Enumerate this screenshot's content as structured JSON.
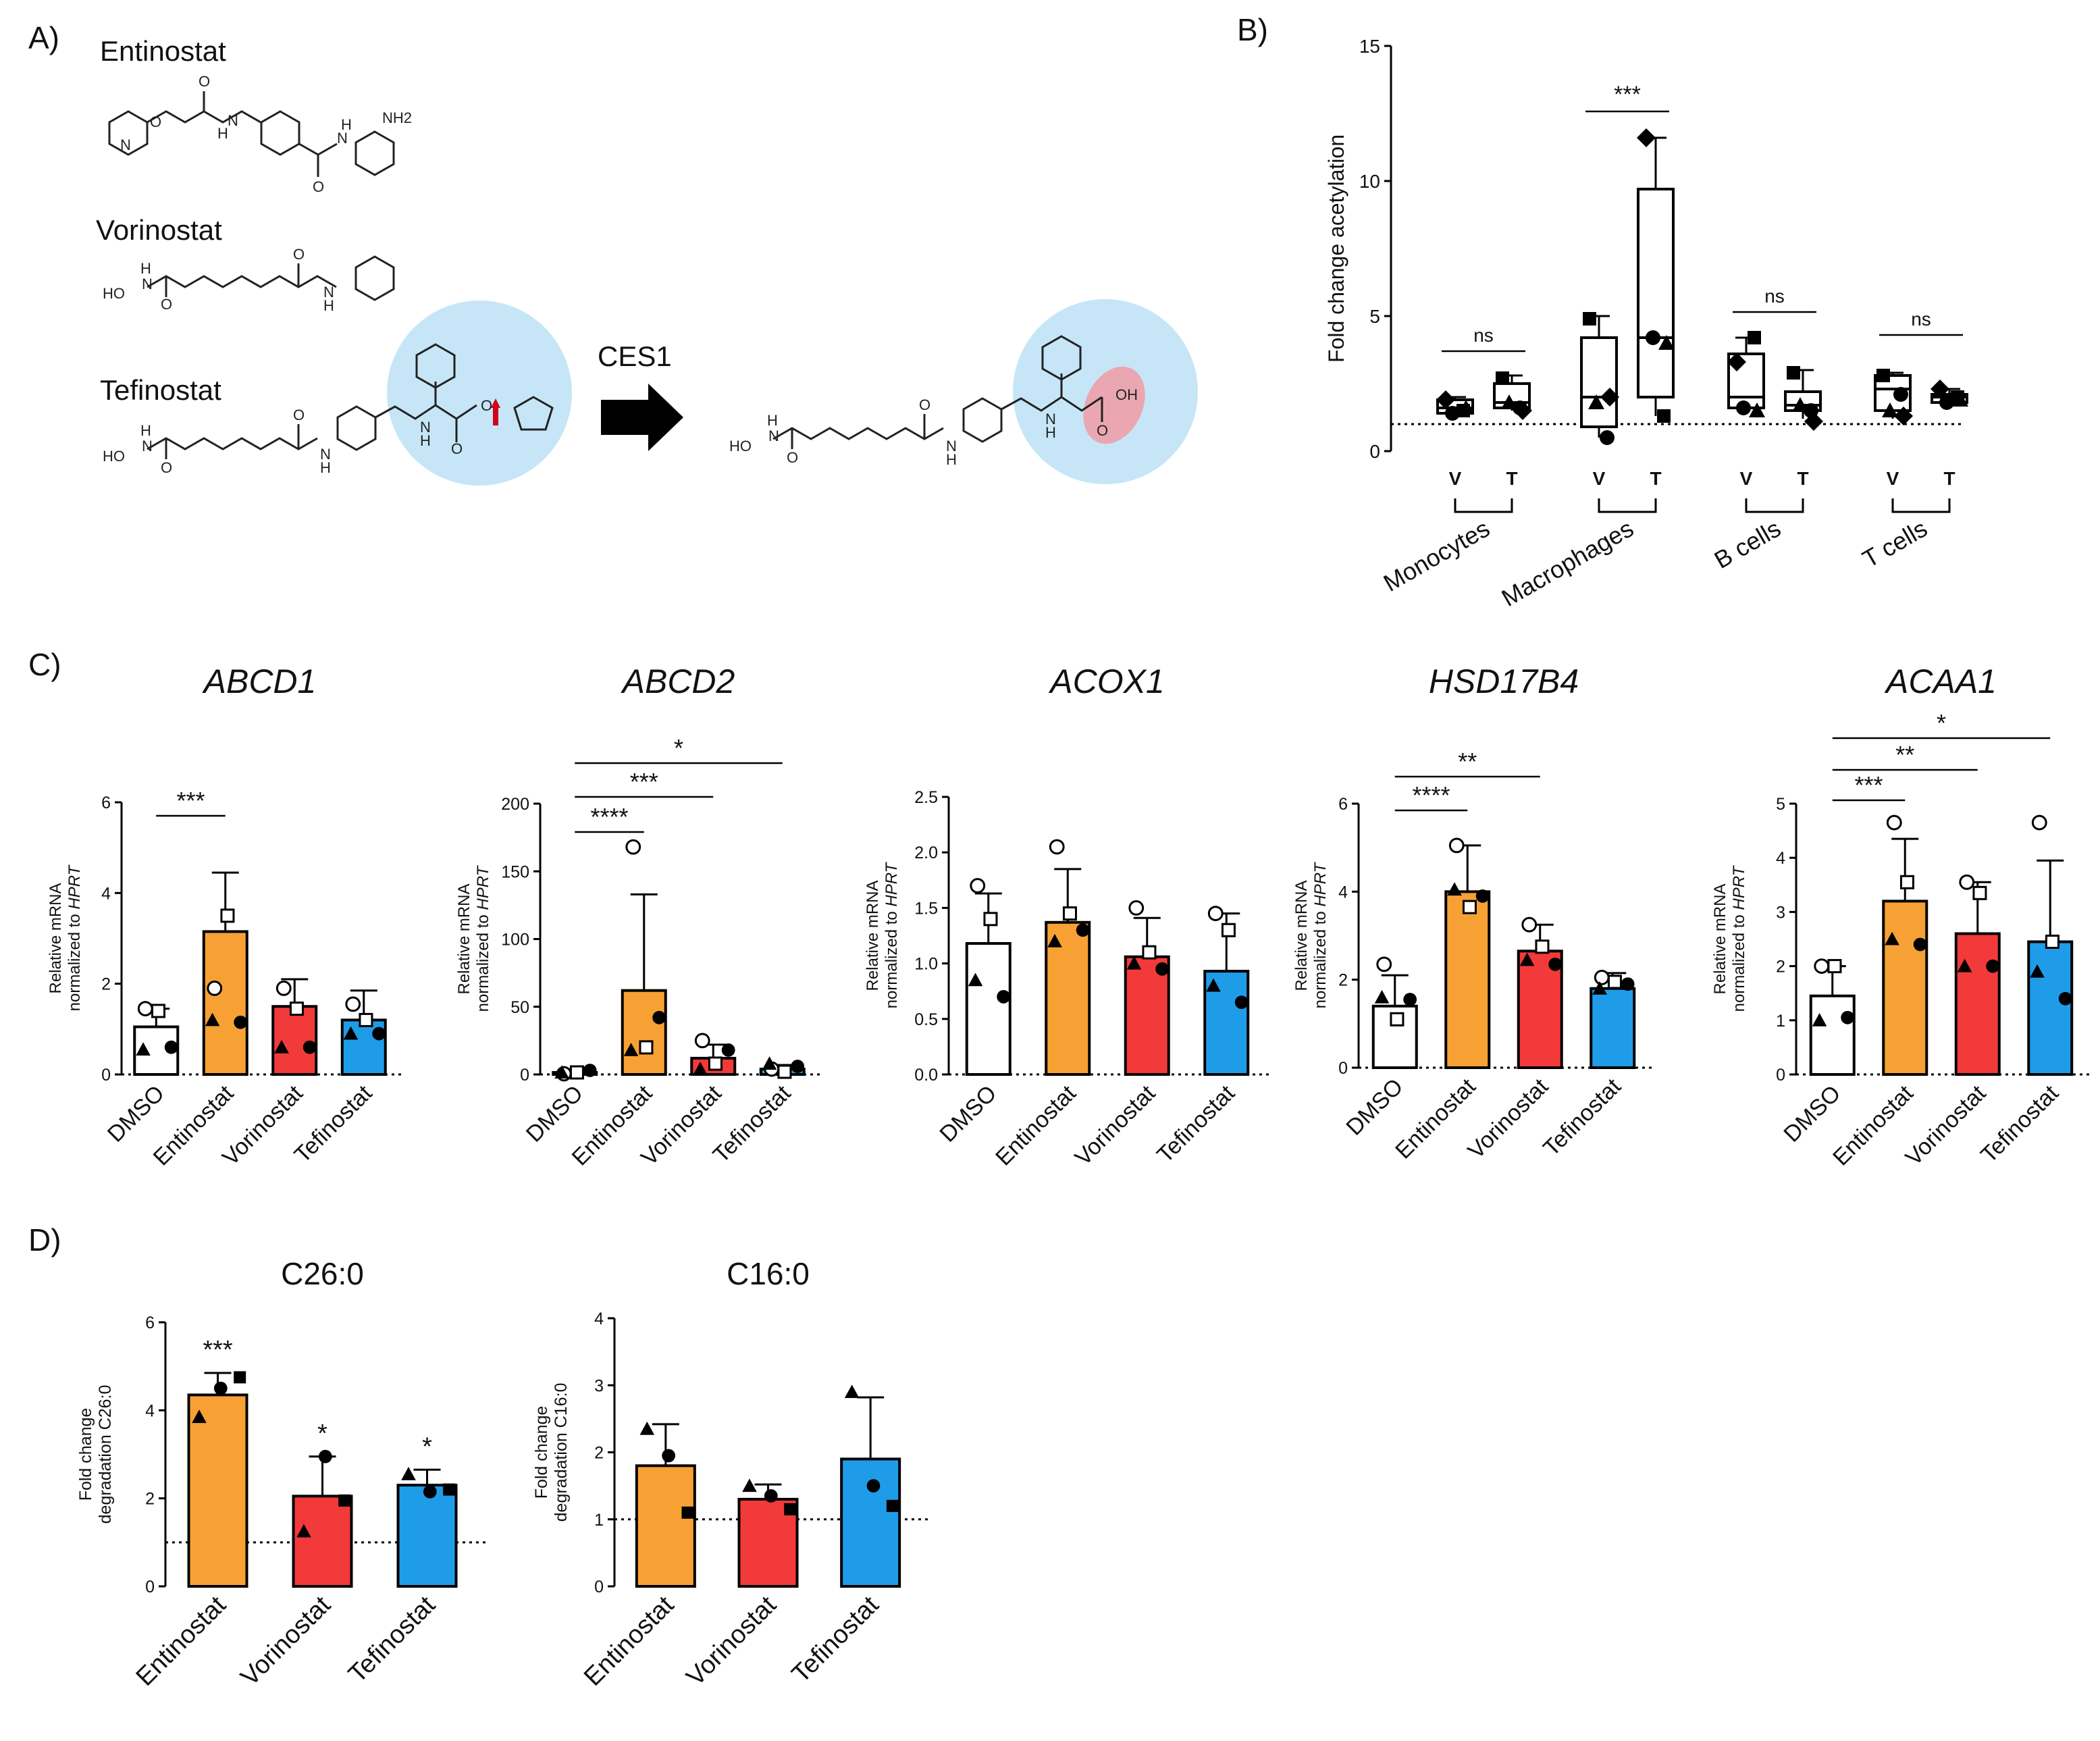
{
  "panels": {
    "A": {
      "label": "A)",
      "drugs": [
        "Entinostat",
        "Vorinostat",
        "Tefinostat"
      ],
      "enzyme": "CES1",
      "atoms": {
        "ent": [
          "O",
          "O",
          "H",
          "N",
          "N",
          "N",
          "H",
          "NH2",
          "O"
        ],
        "vor": [
          "HO",
          "H",
          "N",
          "O",
          "O",
          "N",
          "H"
        ],
        "tef": [
          "HO",
          "H",
          "N",
          "O",
          "O",
          "N",
          "H",
          "N",
          "H",
          "O",
          "O"
        ],
        "prod": [
          "HO",
          "H",
          "N",
          "O",
          "O",
          "N",
          "H",
          "N",
          "H",
          "OH",
          "O"
        ]
      }
    },
    "B": {
      "label": "B)"
    },
    "C": {
      "label": "C)"
    },
    "D": {
      "label": "D)"
    }
  },
  "chart_data": [
    {
      "id": "B",
      "type": "box",
      "ylabel": "Fold change acetylation",
      "ylim": [
        0,
        15
      ],
      "yticks": [
        0,
        5,
        10,
        15
      ],
      "reference_line": 1,
      "groups": [
        "Monocytes",
        "Macrophages",
        "B cells",
        "T cells"
      ],
      "conditions": [
        "V",
        "T"
      ],
      "boxes": [
        {
          "group": "Monocytes",
          "cond": "V",
          "min": 1.3,
          "q1": 1.4,
          "median": 1.6,
          "q3": 1.9,
          "max": 2.0,
          "points": [
            1.9,
            1.5,
            1.4,
            1.6
          ]
        },
        {
          "group": "Monocytes",
          "cond": "T",
          "min": 1.5,
          "q1": 1.6,
          "median": 1.8,
          "q3": 2.5,
          "max": 2.8,
          "points": [
            2.7,
            1.6,
            1.8,
            1.5
          ]
        },
        {
          "group": "Macrophages",
          "cond": "V",
          "min": 0.5,
          "q1": 0.9,
          "median": 2.0,
          "q3": 4.2,
          "max": 5.0,
          "points": [
            4.9,
            0.5,
            1.8,
            2.0
          ]
        },
        {
          "group": "Macrophages",
          "cond": "T",
          "min": 1.3,
          "q1": 2.0,
          "median": 4.2,
          "q3": 9.7,
          "max": 11.6,
          "points": [
            11.6,
            1.3,
            4.2,
            4.0
          ]
        },
        {
          "group": "B cells",
          "cond": "V",
          "min": 1.5,
          "q1": 1.6,
          "median": 2.0,
          "q3": 3.6,
          "max": 4.2,
          "points": [
            3.3,
            4.2,
            1.6,
            1.5
          ]
        },
        {
          "group": "B cells",
          "cond": "T",
          "min": 1.2,
          "q1": 1.5,
          "median": 1.7,
          "q3": 2.2,
          "max": 3.0,
          "points": [
            2.9,
            1.5,
            1.7,
            1.1
          ]
        },
        {
          "group": "T cells",
          "cond": "V",
          "min": 1.2,
          "q1": 1.5,
          "median": 2.3,
          "q3": 2.8,
          "max": 2.9,
          "points": [
            2.8,
            2.1,
            1.5,
            1.3
          ]
        },
        {
          "group": "T cells",
          "cond": "T",
          "min": 1.7,
          "q1": 1.8,
          "median": 2.0,
          "q3": 2.1,
          "max": 2.3,
          "points": [
            2.3,
            2.0,
            1.8,
            1.9
          ]
        }
      ],
      "significance": [
        {
          "group": "Monocytes",
          "label": "ns"
        },
        {
          "group": "Macrophages",
          "label": "***"
        },
        {
          "group": "B cells",
          "label": "ns"
        },
        {
          "group": "T cells",
          "label": "ns"
        }
      ]
    },
    {
      "id": "C1",
      "type": "bar",
      "title": "ABCD1",
      "ylabel": [
        "Relative mRNA",
        "normalized to ",
        "HPRT"
      ],
      "ylim": [
        0,
        6
      ],
      "yticks": [
        "0",
        "2",
        "4",
        "6"
      ],
      "ytick_values": [
        0,
        2,
        4,
        6
      ],
      "categories": [
        "DMSO",
        "Entinostat",
        "Vorinostat",
        "Tefinostat"
      ],
      "values": [
        1.05,
        3.15,
        1.5,
        1.2
      ],
      "errors": [
        0.4,
        1.3,
        0.6,
        0.65
      ],
      "points": [
        [
          1.45,
          1.4,
          0.55,
          0.6
        ],
        [
          1.9,
          3.5,
          1.2,
          1.15
        ],
        [
          1.9,
          1.45,
          0.6,
          0.6
        ],
        [
          1.55,
          1.2,
          0.9,
          0.9
        ]
      ],
      "significance": [
        {
          "from": 0,
          "to": 1,
          "label": "***"
        }
      ]
    },
    {
      "id": "C2",
      "type": "bar",
      "title": "ABCD2",
      "ylabel": [
        "Relative mRNA",
        "normalized to ",
        "HPRT"
      ],
      "ylim": [
        0,
        200
      ],
      "yticks": [
        "0",
        "50",
        "100",
        "150",
        "200"
      ],
      "ytick_values": [
        0,
        50,
        100,
        150,
        200
      ],
      "categories": [
        "DMSO",
        "Entinostat",
        "Vorinostat",
        "Tefinostat"
      ],
      "values": [
        1.5,
        62,
        12,
        4
      ],
      "errors": [
        1,
        71,
        10,
        3
      ],
      "points": [
        [
          0.5,
          1.5,
          1.5,
          3
        ],
        [
          168,
          20,
          18,
          42
        ],
        [
          25,
          8,
          4,
          18
        ],
        [
          4,
          2,
          8,
          6
        ]
      ],
      "significance": [
        {
          "from": 0,
          "to": 1,
          "label": "****"
        },
        {
          "from": 0,
          "to": 2,
          "label": "***"
        },
        {
          "from": 0,
          "to": 3,
          "label": "*"
        }
      ]
    },
    {
      "id": "C3",
      "type": "bar",
      "title": "ACOX1",
      "ylabel": [
        "Relative mRNA",
        "normalized to ",
        "HPRT"
      ],
      "ylim": [
        0,
        2.5
      ],
      "yticks": [
        "0.0",
        "0.5",
        "1.0",
        "1.5",
        "2.0",
        "2.5"
      ],
      "ytick_values": [
        0,
        0.5,
        1,
        1.5,
        2,
        2.5
      ],
      "categories": [
        "DMSO",
        "Entinostat",
        "Vorinostat",
        "Tefinostat"
      ],
      "values": [
        1.18,
        1.37,
        1.06,
        0.93
      ],
      "errors": [
        0.45,
        0.48,
        0.35,
        0.52
      ],
      "points": [
        [
          1.7,
          1.4,
          0.85,
          0.7
        ],
        [
          2.05,
          1.45,
          1.2,
          1.3
        ],
        [
          1.5,
          1.1,
          1.0,
          0.95
        ],
        [
          1.45,
          1.3,
          0.8,
          0.65
        ]
      ],
      "significance": []
    },
    {
      "id": "C4",
      "type": "bar",
      "title": "HSD17B4",
      "ylabel": [
        "Relative mRNA",
        "normalized to ",
        "HPRT"
      ],
      "ylim": [
        0,
        6
      ],
      "yticks": [
        "0",
        "2",
        "4",
        "6"
      ],
      "ytick_values": [
        0,
        2,
        4,
        6
      ],
      "categories": [
        "DMSO",
        "Entinostat",
        "Vorinostat",
        "Tefinostat"
      ],
      "values": [
        1.4,
        4.0,
        2.65,
        1.8
      ],
      "errors": [
        0.7,
        1.05,
        0.6,
        0.35
      ],
      "points": [
        [
          2.35,
          1.1,
          1.6,
          1.55
        ],
        [
          5.05,
          3.65,
          4.05,
          3.9
        ],
        [
          3.25,
          2.75,
          2.45,
          2.35
        ],
        [
          2.05,
          1.95,
          1.8,
          1.9
        ]
      ],
      "significance": [
        {
          "from": 0,
          "to": 1,
          "label": "****"
        },
        {
          "from": 0,
          "to": 2,
          "label": "**"
        }
      ]
    },
    {
      "id": "C5",
      "type": "bar",
      "title": "ACAA1",
      "ylabel": [
        "Relative mRNA",
        "normalized to ",
        "HPRT"
      ],
      "ylim": [
        0,
        5
      ],
      "yticks": [
        "0",
        "1",
        "2",
        "3",
        "4",
        "5"
      ],
      "ytick_values": [
        0,
        1,
        2,
        3,
        4,
        5
      ],
      "categories": [
        "DMSO",
        "Entinostat",
        "Vorinostat",
        "Tefinostat"
      ],
      "values": [
        1.45,
        3.2,
        2.6,
        2.45
      ],
      "errors": [
        0.55,
        1.15,
        0.95,
        1.5
      ],
      "points": [
        [
          2.0,
          2.0,
          1.0,
          1.05
        ],
        [
          4.65,
          3.55,
          2.5,
          2.4
        ],
        [
          3.55,
          3.35,
          2.0,
          2.0
        ],
        [
          4.65,
          2.45,
          1.9,
          1.4
        ]
      ],
      "significance": [
        {
          "from": 0,
          "to": 1,
          "label": "***"
        },
        {
          "from": 0,
          "to": 2,
          "label": "**"
        },
        {
          "from": 0,
          "to": 3,
          "label": "*"
        }
      ]
    },
    {
      "id": "D1",
      "type": "bar",
      "title": "C26:0",
      "ylabel": [
        "Fold change",
        "degradation C26:0"
      ],
      "ylim": [
        0,
        6
      ],
      "yticks": [
        "0",
        "2",
        "4",
        "6"
      ],
      "ytick_values": [
        0,
        2,
        4,
        6
      ],
      "reference_line": 1,
      "categories": [
        "Entinostat",
        "Vorinostat",
        "Tefinostat"
      ],
      "values": [
        4.35,
        2.05,
        2.3
      ],
      "errors": [
        0.5,
        0.9,
        0.35
      ],
      "points": [
        [
          3.85,
          4.5,
          4.75
        ],
        [
          1.25,
          2.95,
          1.95
        ],
        [
          2.55,
          2.15,
          2.2
        ]
      ],
      "significance_labels": [
        "***",
        "*",
        "*"
      ]
    },
    {
      "id": "D2",
      "type": "bar",
      "title": "C16:0",
      "ylabel": [
        "Fold change",
        "degradation C16:0"
      ],
      "ylim": [
        0,
        4
      ],
      "yticks": [
        "0",
        "1",
        "2",
        "3",
        "4"
      ],
      "ytick_values": [
        0,
        1,
        2,
        3,
        4
      ],
      "reference_line": 1,
      "categories": [
        "Entinostat",
        "Vorinostat",
        "Tefinostat"
      ],
      "values": [
        1.8,
        1.3,
        1.9
      ],
      "errors": [
        0.62,
        0.22,
        0.92
      ],
      "points": [
        [
          2.35,
          1.95,
          1.1
        ],
        [
          1.5,
          1.35,
          1.15
        ],
        [
          2.9,
          1.5,
          1.2
        ]
      ],
      "significance_labels": []
    }
  ],
  "colors": {
    "DMSO": "#ffffff",
    "Entinostat": "#f7a135",
    "Vorinostat": "#f23a3a",
    "Tefinostat": "#1f9ce8",
    "highlight_circle": "#c6e6f7",
    "highlight_acid": "#eaa7b2",
    "arrow": "#000000",
    "cleavage_arrow": "#d0021b"
  }
}
